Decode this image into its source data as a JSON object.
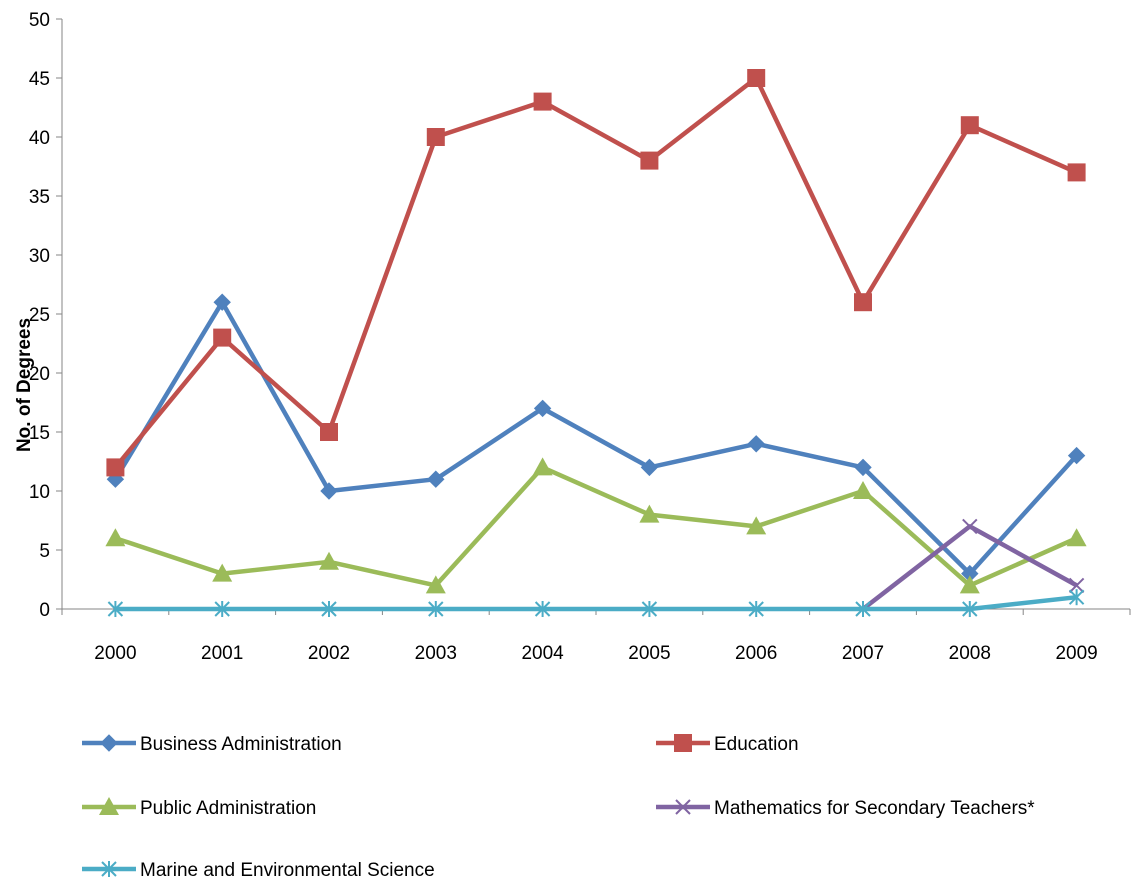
{
  "chart_data": {
    "type": "line",
    "title": "",
    "xlabel": "",
    "ylabel": "No. of Degrees",
    "categories": [
      "2000",
      "2001",
      "2002",
      "2003",
      "2004",
      "2005",
      "2006",
      "2007",
      "2008",
      "2009"
    ],
    "ylim": [
      0,
      50
    ],
    "yticks": [
      0,
      5,
      10,
      15,
      20,
      25,
      30,
      35,
      40,
      45,
      50
    ],
    "grid": false,
    "legend_position": "bottom",
    "series": [
      {
        "name": "Business Administration",
        "color": "#4F81BD",
        "marker": "diamond",
        "values": [
          11,
          26,
          10,
          11,
          17,
          12,
          14,
          12,
          3,
          13
        ]
      },
      {
        "name": "Education",
        "color": "#C0504D",
        "marker": "square",
        "values": [
          12,
          23,
          15,
          40,
          43,
          38,
          45,
          26,
          41,
          37
        ]
      },
      {
        "name": "Public Administration",
        "color": "#9BBB59",
        "marker": "triangle",
        "values": [
          6,
          3,
          4,
          2,
          12,
          8,
          7,
          10,
          2,
          6
        ]
      },
      {
        "name": "Mathematics for Secondary Teachers*",
        "color": "#8064A2",
        "marker": "x",
        "values": [
          null,
          null,
          null,
          null,
          null,
          null,
          null,
          0,
          7,
          2
        ]
      },
      {
        "name": "Marine and Environmental Science",
        "color": "#4BACC6",
        "marker": "star",
        "values": [
          0,
          0,
          0,
          0,
          0,
          0,
          0,
          0,
          0,
          1
        ]
      }
    ]
  }
}
